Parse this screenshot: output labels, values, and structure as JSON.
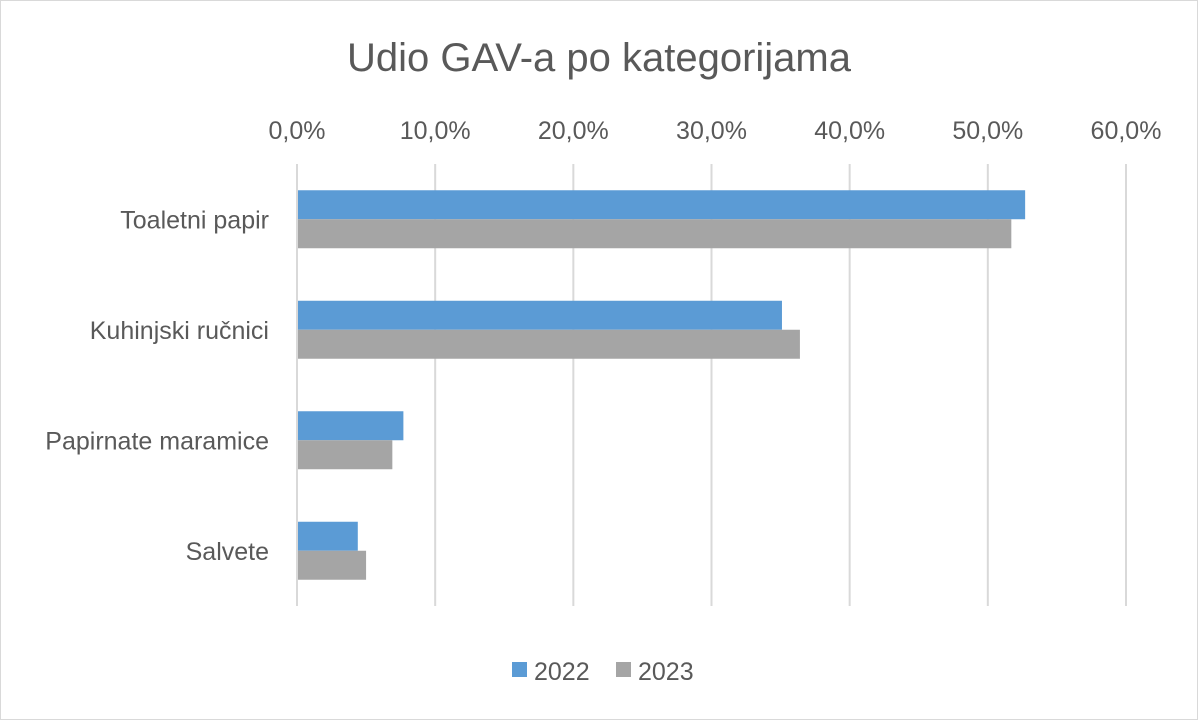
{
  "chart_data": {
    "type": "bar",
    "orientation": "horizontal",
    "title": "Udio GAV-a po kategorijama",
    "categories": [
      "Toaletni papir",
      "Kuhinjski ručnici",
      "Papirnate maramice",
      "Salvete"
    ],
    "series": [
      {
        "name": "2022",
        "color": "#5b9bd5",
        "values": [
          52.7,
          35.1,
          7.7,
          4.4
        ]
      },
      {
        "name": "2023",
        "color": "#a5a5a5",
        "values": [
          51.7,
          36.4,
          6.9,
          5.0
        ]
      }
    ],
    "x_ticks": [
      "0,0%",
      "10,0%",
      "20,0%",
      "30,0%",
      "40,0%",
      "50,0%",
      "60,0%"
    ],
    "xlim": [
      0,
      60
    ],
    "x_axis_position": "top",
    "grid": true,
    "legend_position": "bottom",
    "colors": {
      "grid": "#d9d9d9",
      "text": "#595959"
    }
  }
}
